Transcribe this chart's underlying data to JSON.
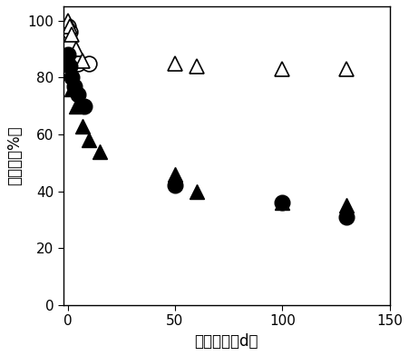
{
  "title": "",
  "xlabel": "冻藏时间（d）",
  "ylabel": "存活率（%）",
  "xlim": [
    -2,
    150
  ],
  "ylim": [
    0,
    105
  ],
  "xticks": [
    0,
    50,
    100,
    150
  ],
  "yticks": [
    0,
    20,
    40,
    60,
    80,
    100
  ],
  "open_circle": {
    "x": [
      0,
      1,
      3,
      5,
      10
    ],
    "y": [
      98,
      96,
      86,
      85,
      85
    ]
  },
  "open_triangle": {
    "x": [
      0,
      1,
      2,
      4,
      7,
      50,
      60,
      100,
      130
    ],
    "y": [
      100,
      98,
      95,
      90,
      86,
      85,
      84,
      83,
      83
    ]
  },
  "filled_circle": {
    "x": [
      0,
      1,
      2,
      3,
      5,
      8,
      50,
      100,
      130
    ],
    "y": [
      88,
      84,
      80,
      77,
      74,
      70,
      42,
      36,
      31
    ]
  },
  "filled_triangle": {
    "x": [
      0,
      1,
      2,
      4,
      7,
      10,
      15,
      50,
      60,
      100,
      130
    ],
    "y": [
      88,
      82,
      76,
      70,
      63,
      58,
      54,
      46,
      40,
      36,
      35
    ]
  },
  "marker_size": 12,
  "background_color": "#ffffff"
}
